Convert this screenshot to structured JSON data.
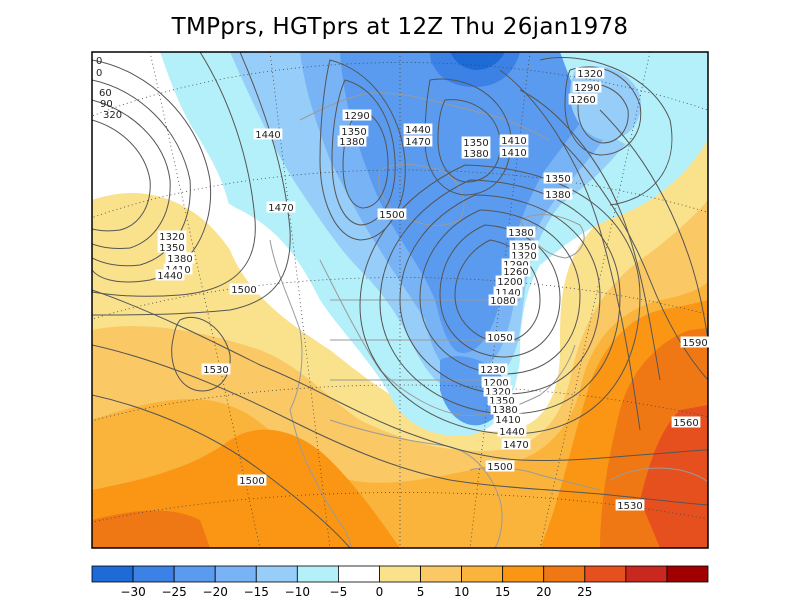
{
  "title": "TMPprs, HGTprs at 12Z Thu 26jan1978",
  "colorbar": {
    "colors": [
      "#1e6ad6",
      "#3c82e6",
      "#5a9bef",
      "#78b4f5",
      "#96cdf9",
      "#b4f0fa",
      "#ffffff",
      "#fae18c",
      "#fac864",
      "#fab43c",
      "#fa9614",
      "#f07814",
      "#e6501e",
      "#c8281e",
      "#a00000"
    ],
    "tick_labels": [
      "-30",
      "-25",
      "-20",
      "-15",
      "-10",
      "-5",
      "0",
      "5",
      "10",
      "15",
      "20",
      "25"
    ]
  },
  "contour_labels": [
    "1320",
    "1290",
    "1260",
    "1290",
    "1440",
    "1350",
    "1380",
    "1440",
    "1470",
    "1350",
    "1380",
    "1410",
    "1410",
    "1350",
    "1380",
    "1470",
    "1500",
    "1320",
    "1350",
    "1380",
    "1410",
    "1440",
    "1380",
    "1350",
    "1320",
    "1290",
    "1260",
    "1200",
    "1140",
    "1080",
    "1050",
    "1500",
    "1530",
    "1230",
    "1200",
    "1320",
    "1350",
    "1380",
    "1410",
    "1440",
    "1470",
    "1590",
    "1560",
    "1500",
    "1500",
    "1530"
  ],
  "left_edge_labels": [
    "0",
    "0",
    "60",
    "90",
    "320"
  ]
}
